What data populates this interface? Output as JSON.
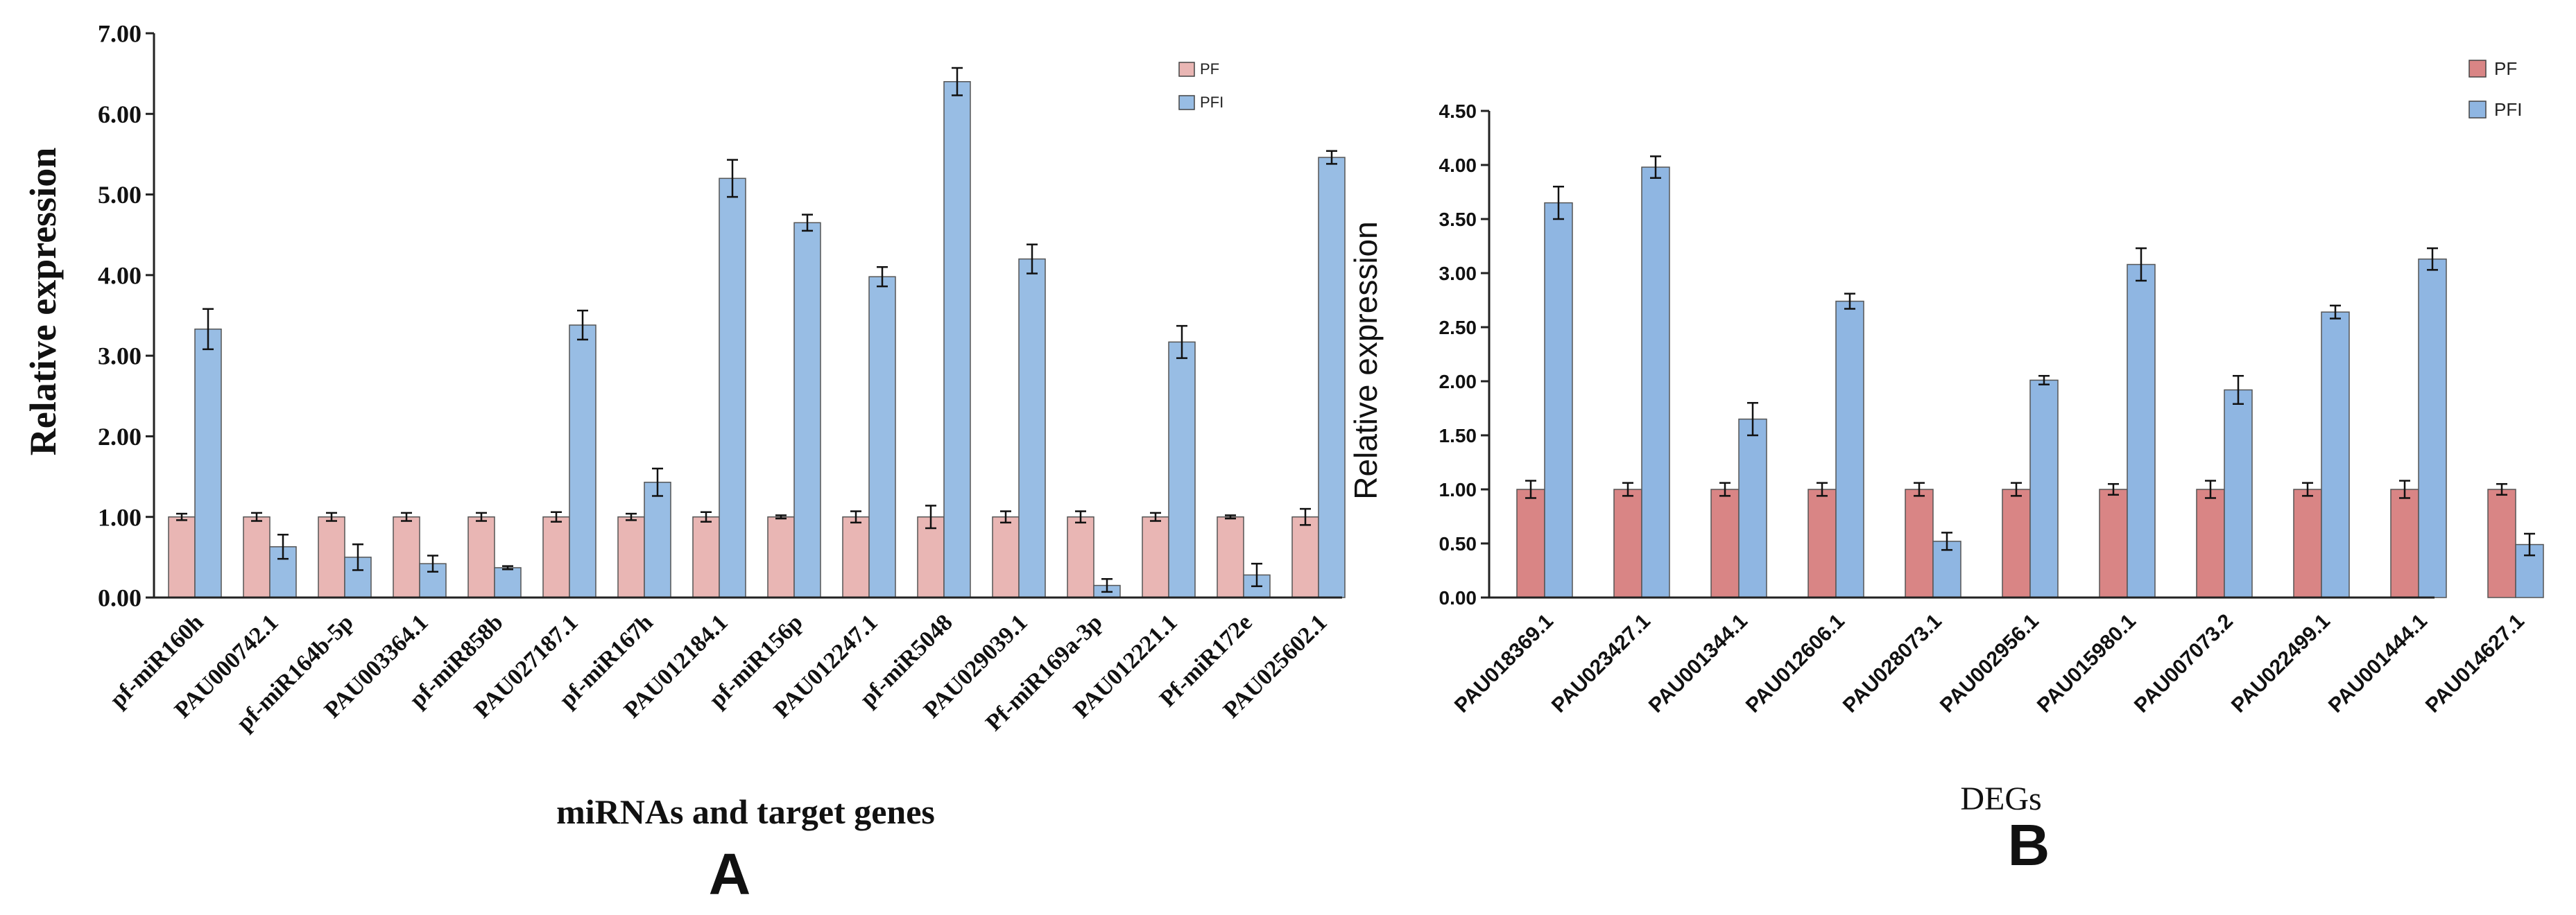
{
  "chart_data": [
    {
      "panel": "A",
      "type": "bar",
      "title": "",
      "xlabel": "miRNAs and target genes",
      "ylabel": "Relative expression",
      "panel_label": "A",
      "ylim": [
        0,
        7
      ],
      "yticks": [
        "0.00",
        "1.00",
        "2.00",
        "3.00",
        "4.00",
        "5.00",
        "6.00",
        "7.00"
      ],
      "grid": false,
      "legend_position": "top-right",
      "categories": [
        "pf-miR160h",
        "PAU000742.1",
        "pf-miR164b-5p",
        "PAU003364.1",
        "pf-miR858b",
        "PAU027187.1",
        "pf-miR167h",
        "PAU012184.1",
        "pf-miR156p",
        "PAU012247.1",
        "pf-miR5048",
        "PAU029039.1",
        "Pf-miR169a-3p",
        "PAU012221.1",
        "Pf-miR172e",
        "PAU025602.1"
      ],
      "series": [
        {
          "name": "PF",
          "color": "#e9b6b4",
          "values": [
            1.0,
            1.0,
            1.0,
            1.0,
            1.0,
            1.0,
            1.0,
            1.0,
            1.0,
            1.0,
            1.0,
            1.0,
            1.0,
            1.0,
            1.0,
            1.0
          ],
          "errors": [
            0.04,
            0.05,
            0.05,
            0.05,
            0.05,
            0.06,
            0.04,
            0.06,
            0.02,
            0.07,
            0.14,
            0.07,
            0.07,
            0.05,
            0.02,
            0.1
          ]
        },
        {
          "name": "PFI",
          "color": "#98bde4",
          "values": [
            3.33,
            0.63,
            0.5,
            0.42,
            0.37,
            3.38,
            1.43,
            5.2,
            4.65,
            3.98,
            6.4,
            4.2,
            0.15,
            3.17,
            0.28,
            5.46
          ],
          "errors": [
            0.25,
            0.15,
            0.16,
            0.1,
            0.02,
            0.18,
            0.17,
            0.23,
            0.1,
            0.12,
            0.17,
            0.18,
            0.08,
            0.2,
            0.14,
            0.08
          ]
        }
      ]
    },
    {
      "panel": "B",
      "type": "bar",
      "title": "",
      "xlabel": "DEGs",
      "ylabel": "Relative expression",
      "panel_label": "B",
      "ylim": [
        0,
        4.5
      ],
      "yticks": [
        "0.00",
        "0.50",
        "1.00",
        "1.50",
        "2.00",
        "2.50",
        "3.00",
        "3.50",
        "4.00",
        "4.50"
      ],
      "grid": false,
      "legend_position": "top-right",
      "categories": [
        "PAU018369.1",
        "PAU023427.1",
        "PAU001344.1",
        "PAU012606.1",
        "PAU028073.1",
        "PAU002956.1",
        "PAU015980.1",
        "PAU007073.2",
        "PAU022499.1",
        "PAU001444.1",
        "PAU014627.1"
      ],
      "series": [
        {
          "name": "PF",
          "color": "#d98585",
          "values": [
            1.0,
            1.0,
            1.0,
            1.0,
            1.0,
            1.0,
            1.0,
            1.0,
            1.0,
            1.0,
            1.0
          ],
          "errors": [
            0.08,
            0.06,
            0.06,
            0.06,
            0.06,
            0.06,
            0.05,
            0.08,
            0.06,
            0.08,
            0.05
          ]
        },
        {
          "name": "PFI",
          "color": "#8fb6e2",
          "values": [
            3.65,
            3.98,
            1.65,
            2.74,
            0.52,
            2.01,
            3.08,
            1.92,
            2.64,
            3.13,
            0.49
          ]
        },
        {
          "name": "_errPFI",
          "values": [
            0.15,
            0.1,
            0.15,
            0.07,
            0.08,
            0.04,
            0.15,
            0.13,
            0.06,
            0.1,
            0.1
          ]
        }
      ]
    }
  ]
}
